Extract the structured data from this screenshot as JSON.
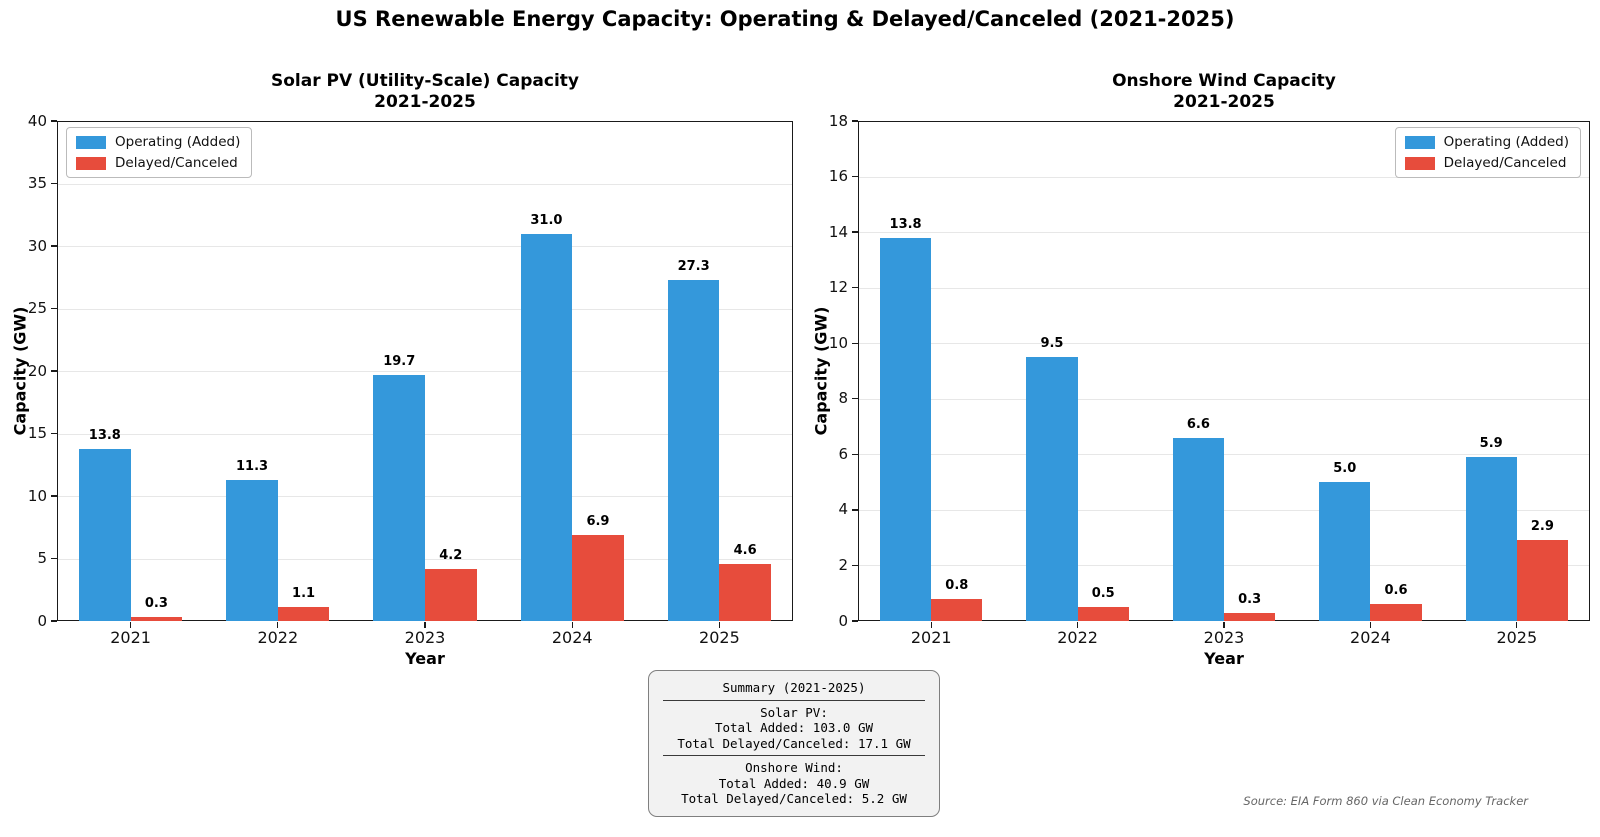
{
  "page": {
    "title": "US Renewable Energy Capacity: Operating & Delayed/Canceled (2021-2025)",
    "source_note": "Source: EIA Form 860 via Clean Economy Tracker"
  },
  "colors": {
    "operating_blue": "#3498db",
    "delayed_red": "#e74c3c",
    "grid": "#e7e7e7",
    "summary_box_bg": "#f2f2f2"
  },
  "chart_data": [
    {
      "type": "bar",
      "title": "Solar PV (Utility-Scale) Capacity",
      "subtitle": "2021-2025",
      "xlabel": "Year",
      "ylabel": "Capacity (GW)",
      "categories": [
        "2021",
        "2022",
        "2023",
        "2024",
        "2025"
      ],
      "series": [
        {
          "name": "Operating (Added)",
          "color": "#3498db",
          "values": [
            13.8,
            11.3,
            19.7,
            31.0,
            27.3
          ]
        },
        {
          "name": "Delayed/Canceled",
          "color": "#e74c3c",
          "values": [
            0.3,
            1.1,
            4.2,
            6.9,
            4.6
          ]
        }
      ],
      "ylim": [
        0,
        40
      ],
      "ytick_step": 5,
      "grid": true,
      "legend_position": "top-left"
    },
    {
      "type": "bar",
      "title": "Onshore Wind Capacity",
      "subtitle": "2021-2025",
      "xlabel": "Year",
      "ylabel": "Capacity (GW)",
      "categories": [
        "2021",
        "2022",
        "2023",
        "2024",
        "2025"
      ],
      "series": [
        {
          "name": "Operating (Added)",
          "color": "#3498db",
          "values": [
            13.8,
            9.5,
            6.6,
            5.0,
            5.9
          ]
        },
        {
          "name": "Delayed/Canceled",
          "color": "#e74c3c",
          "values": [
            0.8,
            0.5,
            0.3,
            0.6,
            2.9
          ]
        }
      ],
      "ylim": [
        0,
        18
      ],
      "ytick_step": 2,
      "grid": true,
      "legend_position": "top-right"
    }
  ],
  "summary_box": {
    "title": "Summary (2021-2025)",
    "solar_heading": "Solar PV:",
    "solar_added": "Total Added: 103.0 GW",
    "solar_delayed": "Total Delayed/Canceled: 17.1 GW",
    "wind_heading": "Onshore Wind:",
    "wind_added": "Total Added: 40.9 GW",
    "wind_delayed": "Total Delayed/Canceled: 5.2 GW"
  }
}
